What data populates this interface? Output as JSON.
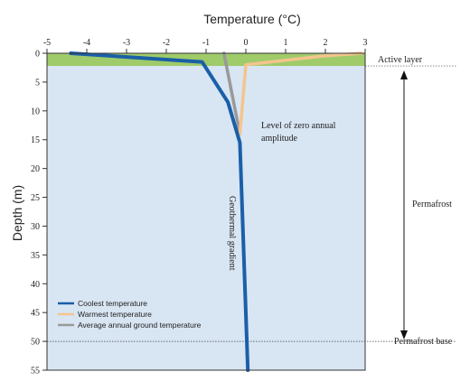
{
  "chart_data": {
    "type": "line",
    "title": "Temperature (°C)",
    "xlabel": "Temperature (°C)",
    "ylabel": "Depth (m)",
    "xlim": [
      -5,
      3
    ],
    "ylim": [
      0,
      55
    ],
    "x_ticks": [
      -5,
      -4,
      -3,
      -2,
      -1,
      0,
      1,
      2,
      3
    ],
    "y_ticks": [
      0,
      5,
      10,
      15,
      20,
      25,
      30,
      35,
      40,
      45,
      50,
      55
    ],
    "series": [
      {
        "name": "Coolest temperature",
        "color": "#1a5fa8",
        "points": [
          [
            -4.4,
            0
          ],
          [
            -1.1,
            1.5
          ],
          [
            -0.45,
            8.5
          ],
          [
            -0.15,
            15.5
          ],
          [
            0.05,
            55
          ]
        ]
      },
      {
        "name": "Warmest temperature",
        "color": "#f5c48e",
        "points": [
          [
            2.9,
            0
          ],
          [
            1.9,
            0.5
          ],
          [
            0,
            2
          ],
          [
            -0.15,
            14
          ]
        ]
      },
      {
        "name": "Average annual ground temperature",
        "color": "#999999",
        "points": [
          [
            -0.55,
            0
          ],
          [
            -0.15,
            14
          ]
        ]
      }
    ],
    "layers": {
      "active_layer_depth": 2.2,
      "permafrost_base_depth": 50,
      "active_layer_color": "#9fcb6a",
      "permafrost_color": "#d8e5f3"
    },
    "annotations": {
      "active_layer": "Active layer",
      "permafrost": "Permafrost",
      "permafrost_base": "Permafrost base",
      "zero_amplitude_line1": "Level of zero annual",
      "zero_amplitude_line2": "amplitude",
      "geothermal": "Geothermal gradient"
    }
  }
}
